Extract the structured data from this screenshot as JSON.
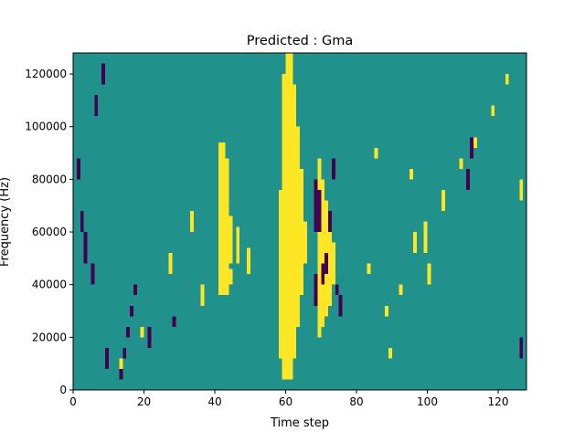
{
  "chart_data": {
    "type": "heatmap",
    "title": "Predicted : Gma",
    "xlabel": "Time step",
    "ylabel": "Frequency (Hz)",
    "xlim": [
      0,
      128
    ],
    "ylim": [
      0,
      128000
    ],
    "x_ticks": [
      0,
      20,
      40,
      60,
      80,
      100,
      120
    ],
    "y_ticks": [
      0,
      20000,
      40000,
      60000,
      80000,
      100000,
      120000
    ],
    "y_tick_labels": [
      "0",
      "20000",
      "40000",
      "60000",
      "80000",
      "100000",
      "120000"
    ],
    "colormap": "viridis",
    "levels": [
      -1,
      0,
      1
    ],
    "level_colors": {
      "-1": "#440154",
      "0": "#21918c",
      "1": "#fde725"
    },
    "n_time_steps": 128,
    "n_freq_bins": 64,
    "cells": [
      [
        41,
        18,
        47,
        1
      ],
      [
        42,
        18,
        47,
        1
      ],
      [
        43,
        18,
        44,
        1
      ],
      [
        44,
        24,
        33,
        1
      ],
      [
        44,
        20,
        23,
        1
      ],
      [
        46,
        24,
        31,
        1
      ],
      [
        49,
        22,
        27,
        1
      ],
      [
        58,
        6,
        38,
        1
      ],
      [
        59,
        2,
        60,
        1
      ],
      [
        60,
        2,
        64,
        1
      ],
      [
        61,
        2,
        64,
        1
      ],
      [
        62,
        6,
        58,
        1
      ],
      [
        63,
        12,
        50,
        1
      ],
      [
        64,
        18,
        42,
        1
      ],
      [
        65,
        24,
        32,
        1
      ],
      [
        69,
        10,
        44,
        1
      ],
      [
        70,
        12,
        40,
        1
      ],
      [
        71,
        14,
        36,
        1
      ],
      [
        72,
        16,
        30,
        1
      ],
      [
        73,
        20,
        28,
        1
      ],
      [
        99,
        26,
        32,
        1
      ],
      [
        100,
        20,
        24,
        1
      ],
      [
        0,
        46,
        52,
        0
      ],
      [
        68,
        16,
        22,
        -1
      ],
      [
        68,
        30,
        40,
        -1
      ],
      [
        69,
        30,
        38,
        -1
      ],
      [
        70,
        20,
        24,
        -1
      ],
      [
        71,
        22,
        26,
        -1
      ],
      [
        72,
        30,
        34,
        -1
      ],
      [
        73,
        40,
        44,
        -1
      ],
      [
        74,
        18,
        20,
        -1
      ],
      [
        75,
        14,
        18,
        -1
      ],
      [
        13,
        2,
        4,
        -1
      ],
      [
        14,
        6,
        8,
        -1
      ],
      [
        15,
        10,
        12,
        -1
      ],
      [
        16,
        14,
        16,
        -1
      ],
      [
        17,
        18,
        20,
        -1
      ],
      [
        9,
        4,
        8,
        -1
      ],
      [
        21,
        8,
        12,
        -1
      ],
      [
        28,
        12,
        14,
        -1
      ],
      [
        111,
        38,
        42,
        -1
      ],
      [
        112,
        44,
        48,
        -1
      ],
      [
        126,
        6,
        10,
        -1
      ],
      [
        5,
        20,
        24,
        -1
      ],
      [
        3,
        24,
        30,
        -1
      ],
      [
        2,
        30,
        34,
        -1
      ],
      [
        1,
        40,
        44,
        -1
      ],
      [
        6,
        52,
        56,
        -1
      ],
      [
        8,
        58,
        62,
        -1
      ],
      [
        13,
        4,
        6,
        1
      ],
      [
        19,
        10,
        12,
        1
      ],
      [
        27,
        22,
        26,
        1
      ],
      [
        33,
        30,
        34,
        1
      ],
      [
        36,
        16,
        20,
        1
      ],
      [
        88,
        14,
        16,
        1
      ],
      [
        92,
        18,
        20,
        1
      ],
      [
        96,
        26,
        30,
        1
      ],
      [
        104,
        34,
        38,
        1
      ],
      [
        109,
        42,
        44,
        1
      ],
      [
        113,
        46,
        48,
        1
      ],
      [
        118,
        52,
        54,
        1
      ],
      [
        122,
        58,
        60,
        1
      ],
      [
        126,
        36,
        40,
        1
      ],
      [
        89,
        6,
        8,
        1
      ],
      [
        95,
        40,
        42,
        1
      ],
      [
        85,
        44,
        46,
        1
      ],
      [
        83,
        22,
        24,
        1
      ]
    ]
  }
}
